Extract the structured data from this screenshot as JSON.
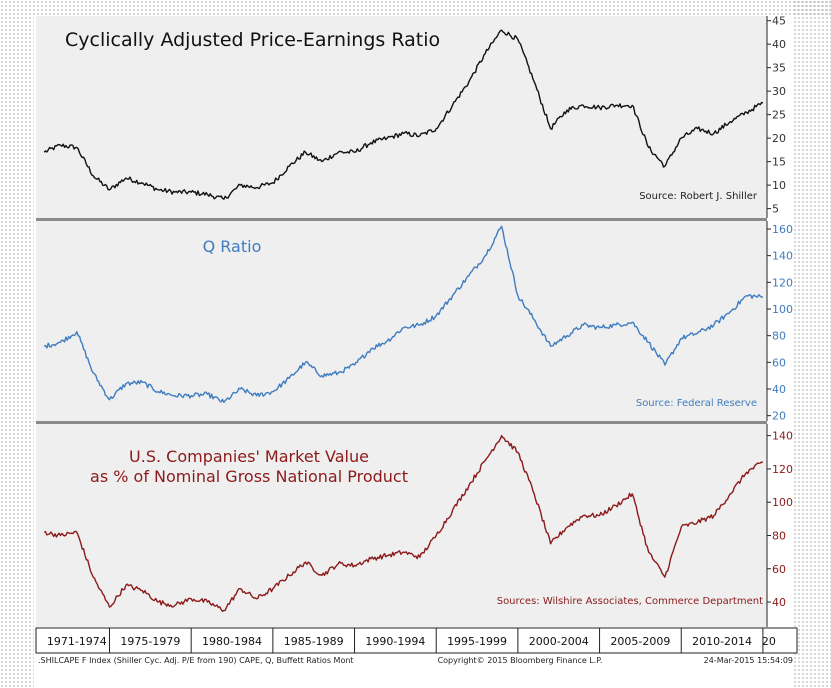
{
  "chart_data": [
    {
      "type": "line",
      "title": "Cyclically Adjusted Price-Earnings Ratio",
      "source": "Source: Robert J. Shiller",
      "color": "#111111",
      "y_ticks": [
        5,
        10,
        15,
        20,
        25,
        30,
        35,
        40,
        45
      ],
      "ylim": [
        3,
        46
      ],
      "x": [
        1971,
        1972,
        1973,
        1974,
        1975,
        1976,
        1977,
        1978,
        1979,
        1980,
        1981,
        1982,
        1983,
        1984,
        1985,
        1986,
        1987,
        1988,
        1989,
        1990,
        1991,
        1992,
        1993,
        1994,
        1995,
        1996,
        1997,
        1998,
        1999,
        2000,
        2001,
        2002,
        2003,
        2004,
        2005,
        2006,
        2007,
        2008,
        2009,
        2010,
        2011,
        2012,
        2013,
        2014,
        2015
      ],
      "values": [
        17,
        18.5,
        18,
        12,
        9,
        11.5,
        10.5,
        9,
        8.5,
        8.5,
        8,
        7,
        10,
        9.5,
        10.5,
        14,
        17,
        15,
        17,
        17,
        19,
        20,
        21,
        20.5,
        22,
        27,
        32,
        38,
        43,
        41,
        32,
        22,
        26,
        27,
        26.5,
        27,
        27,
        18,
        14,
        20,
        22,
        21,
        23.5,
        25.5,
        27.5
      ]
    },
    {
      "type": "line",
      "title": "Q Ratio",
      "source": "Source: Federal Reserve",
      "color": "#3f7cc0",
      "y_ticks": [
        20,
        40,
        60,
        80,
        100,
        120,
        140,
        160
      ],
      "ylim": [
        16,
        166
      ],
      "x": [
        1971,
        1972,
        1973,
        1974,
        1975,
        1976,
        1977,
        1978,
        1979,
        1980,
        1981,
        1982,
        1983,
        1984,
        1985,
        1986,
        1987,
        1988,
        1989,
        1990,
        1991,
        1992,
        1993,
        1994,
        1995,
        1996,
        1997,
        1998,
        1999,
        2000,
        2001,
        2002,
        2003,
        2004,
        2005,
        2006,
        2007,
        2008,
        2009,
        2010,
        2011,
        2012,
        2013,
        2014,
        2015
      ],
      "values": [
        72,
        75,
        83,
        52,
        32,
        44,
        45,
        38,
        35,
        35,
        36,
        30,
        40,
        35,
        38,
        48,
        60,
        50,
        52,
        58,
        70,
        76,
        86,
        88,
        95,
        110,
        125,
        140,
        162,
        110,
        92,
        72,
        80,
        88,
        86,
        88,
        90,
        75,
        58,
        78,
        82,
        88,
        98,
        110,
        109
      ]
    },
    {
      "type": "line",
      "title": "U.S. Companies' Market Value as % of Nominal Gross National Product",
      "title_line1": "U.S. Companies' Market Value",
      "title_line2": "as % of Nominal Gross National Product",
      "source": "Sources: Wilshire Associates, Commerce Department",
      "color": "#8b1a1a",
      "y_ticks": [
        40,
        60,
        80,
        100,
        120,
        140
      ],
      "ylim": [
        25,
        147
      ],
      "x": [
        1971,
        1972,
        1973,
        1974,
        1975,
        1976,
        1977,
        1978,
        1979,
        1980,
        1981,
        1982,
        1983,
        1984,
        1985,
        1986,
        1987,
        1988,
        1989,
        1990,
        1991,
        1992,
        1993,
        1994,
        1995,
        1996,
        1997,
        1998,
        1999,
        2000,
        2001,
        2002,
        2003,
        2004,
        2005,
        2006,
        2007,
        2008,
        2009,
        2010,
        2011,
        2012,
        2013,
        2014,
        2015
      ],
      "values": [
        82,
        80,
        82,
        55,
        37,
        50,
        47,
        40,
        38,
        42,
        40,
        35,
        48,
        42,
        48,
        56,
        64,
        56,
        63,
        62,
        66,
        68,
        70,
        67,
        80,
        95,
        110,
        125,
        140,
        130,
        105,
        75,
        85,
        92,
        92,
        98,
        105,
        70,
        55,
        85,
        88,
        92,
        105,
        118,
        124
      ]
    }
  ],
  "x_axis": {
    "range": [
      1970.5,
      2015.25
    ],
    "labels": [
      "1971-1974",
      "1975-1979",
      "1980-1984",
      "1985-1989",
      "1990-1994",
      "1995-1999",
      "2000-2004",
      "2005-2009",
      "2010-2014",
      "20"
    ],
    "label_years": [
      1971,
      1975,
      1980,
      1985,
      1990,
      1995,
      2000,
      2005,
      2010,
      2015
    ],
    "separator_years": [
      1975,
      1980,
      1985,
      1990,
      1995,
      2000,
      2005,
      2010,
      2015
    ]
  },
  "footer": {
    "left": ".SHILCAPE F Index (Shiller Cyc. Adj. P/E from 190) CAPE, Q, Buffett Ratios  Mont",
    "center": "Copyright© 2015 Bloomberg Finance L.P.",
    "right": "24-Mar-2015  15:54:09"
  }
}
